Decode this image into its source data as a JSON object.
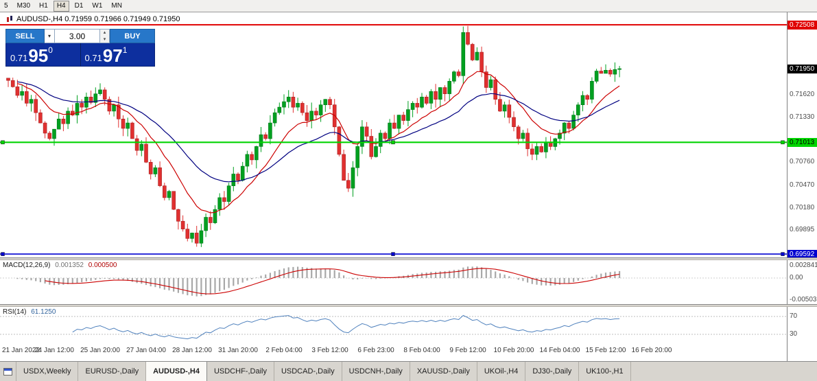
{
  "colors": {
    "candle_up": "#00a020",
    "candle_down": "#e03030",
    "ma_fast": "#cc0000",
    "ma_slow": "#000080",
    "hline_red": "#e00000",
    "hline_green": "#00d400",
    "hline_blue": "#0000d0",
    "macd_hist": "#a8a8a8",
    "macd_signal": "#cc0000",
    "rsi_line": "#4f81bd"
  },
  "toolbar": {
    "timeframes": [
      {
        "label": "5",
        "active": false
      },
      {
        "label": "M30",
        "active": false
      },
      {
        "label": "H1",
        "active": false
      },
      {
        "label": "H4",
        "active": true
      },
      {
        "label": "D1",
        "active": false
      },
      {
        "label": "W1",
        "active": false
      },
      {
        "label": "MN",
        "active": false
      }
    ]
  },
  "symbol_info": {
    "text": "AUDUSD-,H4  0.71959 0.71966 0.71949 0.71950"
  },
  "trade_panel": {
    "sell_label": "SELL",
    "buy_label": "BUY",
    "volume": "3.00",
    "bid": {
      "prefix": "0.71",
      "big": "95",
      "sup": "0"
    },
    "ask": {
      "prefix": "0.71",
      "big": "97",
      "sup": "1"
    }
  },
  "price_axis": {
    "labels": [
      {
        "value": "0.72508",
        "type": "red"
      },
      {
        "value": "0.71950",
        "type": "current"
      },
      {
        "value": "0.71620",
        "type": "plain"
      },
      {
        "value": "0.71330",
        "type": "plain"
      },
      {
        "value": "0.71013",
        "type": "green"
      },
      {
        "value": "0.70760",
        "type": "plain"
      },
      {
        "value": "0.70470",
        "type": "plain"
      },
      {
        "value": "0.70180",
        "type": "plain"
      },
      {
        "value": "0.69895",
        "type": "plain"
      },
      {
        "value": "0.69592",
        "type": "blue"
      }
    ]
  },
  "macd": {
    "label": "MACD(12,26,9)",
    "v1": "0.001352",
    "v2": "0.000500",
    "axis": [
      "0.002841",
      "0.00",
      "-0.00503"
    ]
  },
  "rsi": {
    "label": "RSI(14)",
    "value": "61.1250",
    "levels": [
      "70",
      "30"
    ]
  },
  "time_axis": [
    "21 Jan 2022",
    "24 Jan 12:00",
    "25 Jan 20:00",
    "27 Jan 04:00",
    "28 Jan 12:00",
    "31 Jan 20:00",
    "2 Feb 04:00",
    "3 Feb 12:00",
    "6 Feb 23:00",
    "8 Feb 04:00",
    "9 Feb 12:00",
    "10 Feb 20:00",
    "14 Feb 04:00",
    "15 Feb 12:00",
    "16 Feb 20:00"
  ],
  "tabs": [
    {
      "label": "USDX,Weekly",
      "active": false
    },
    {
      "label": "EURUSD-,Daily",
      "active": false
    },
    {
      "label": "AUDUSD-,H4",
      "active": true
    },
    {
      "label": "USDCHF-,Daily",
      "active": false
    },
    {
      "label": "USDCAD-,Daily",
      "active": false
    },
    {
      "label": "USDCNH-,Daily",
      "active": false
    },
    {
      "label": "XAUUSD-,Daily",
      "active": false
    },
    {
      "label": "UKOil-,H4",
      "active": false
    },
    {
      "label": "DJ30-,Daily",
      "active": false
    },
    {
      "label": "UK100-,H1",
      "active": false
    }
  ],
  "chart_data": {
    "type": "candlestick",
    "symbol": "AUDUSD-",
    "timeframe": "H4",
    "quote": {
      "open": 0.71959,
      "high": 0.71966,
      "low": 0.71949,
      "close": 0.7195
    },
    "bid": 0.7195,
    "ask": 0.71971,
    "y_ticks": [
      0.72508,
      0.7195,
      0.7162,
      0.7133,
      0.71013,
      0.7076,
      0.7047,
      0.7018,
      0.69895,
      0.69592
    ],
    "first_open": 0.7183,
    "closes": [
      0.718,
      0.7172,
      0.7161,
      0.7166,
      0.7151,
      0.7156,
      0.7139,
      0.7126,
      0.7113,
      0.7106,
      0.7118,
      0.7131,
      0.7125,
      0.7141,
      0.7136,
      0.7151,
      0.7146,
      0.7159,
      0.7152,
      0.7163,
      0.7168,
      0.7156,
      0.7141,
      0.7149,
      0.7131,
      0.7119,
      0.7126,
      0.7106,
      0.7091,
      0.7099,
      0.7076,
      0.7061,
      0.7069,
      0.7046,
      0.7031,
      0.7039,
      0.7016,
      0.7001,
      0.6991,
      0.6979,
      0.6986,
      0.6973,
      0.6989,
      0.7006,
      0.6999,
      0.7016,
      0.7031,
      0.7026,
      0.7046,
      0.7061,
      0.7053,
      0.7071,
      0.7086,
      0.7079,
      0.7096,
      0.7111,
      0.7106,
      0.7126,
      0.7139,
      0.7146,
      0.7153,
      0.7159,
      0.7146,
      0.7151,
      0.7139,
      0.7129,
      0.7141,
      0.7136,
      0.7149,
      0.7156,
      0.7149,
      0.7121,
      0.7086,
      0.7053,
      0.7043,
      0.7069,
      0.7096,
      0.7121,
      0.7109,
      0.7083,
      0.7096,
      0.7113,
      0.7106,
      0.7126,
      0.7119,
      0.7136,
      0.7129,
      0.7143,
      0.7151,
      0.7146,
      0.7159,
      0.7151,
      0.7166,
      0.7156,
      0.7171,
      0.7163,
      0.7179,
      0.7191,
      0.7186,
      0.7241,
      0.7226,
      0.7206,
      0.7216,
      0.7191,
      0.7171,
      0.7181,
      0.7156,
      0.7141,
      0.7149,
      0.7133,
      0.7121,
      0.7106,
      0.7113,
      0.7093,
      0.7086,
      0.7096,
      0.7089,
      0.7101,
      0.7096,
      0.7106,
      0.7113,
      0.7126,
      0.7119,
      0.7136,
      0.7149,
      0.7161,
      0.7156,
      0.7179,
      0.7192,
      0.7189,
      0.7193,
      0.7188,
      0.7194,
      0.7195
    ],
    "horizontal_lines": [
      {
        "price": 0.72508,
        "color": "#e00000",
        "width": 2,
        "handles": false
      },
      {
        "price": 0.71013,
        "color": "#00d400",
        "width": 2.2,
        "handles": true
      },
      {
        "price": 0.69592,
        "color": "#0000d0",
        "width": 1.6,
        "handles": true
      }
    ],
    "moving_averages": [
      {
        "period": 12,
        "color": "#cc0000"
      },
      {
        "period": 30,
        "color": "#000080"
      }
    ],
    "indicators": [
      {
        "name": "MACD",
        "params": "12,26,9",
        "values": [
          0.001352,
          0.0005
        ],
        "axis": [
          0.002841,
          0.0,
          -0.00503
        ]
      },
      {
        "name": "RSI",
        "params": "14",
        "value": 61.125,
        "levels": [
          70,
          30
        ]
      }
    ]
  }
}
